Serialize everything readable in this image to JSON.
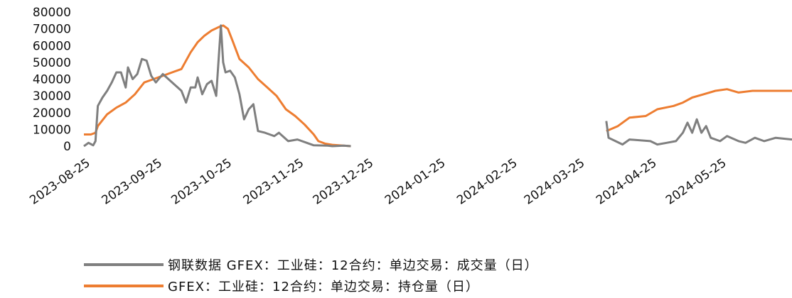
{
  "chart_data": {
    "type": "line",
    "title": "",
    "xlabel": "",
    "ylabel": "",
    "ylim": [
      0,
      80000
    ],
    "yticks": [
      "0",
      "10000",
      "20000",
      "30000",
      "40000",
      "50000",
      "60000",
      "70000",
      "80000"
    ],
    "xticks": [
      "2023-08-25",
      "2023-09-25",
      "2023-10-25",
      "2023-11-25",
      "2023-12-25",
      "2024-01-25",
      "2024-02-25",
      "2024-03-25",
      "2024-04-25",
      "2024-05-25"
    ],
    "xlim": [
      "2023-08-22",
      "2024-06-22"
    ],
    "grid": false,
    "legend_position": "bottom",
    "series": [
      {
        "name": "钢联数据 GFEX：工业硅：12合约：单边交易：成交量（日）",
        "color": "#7f7f7f",
        "points": [
          [
            "2023-08-22",
            0
          ],
          [
            "2023-08-24",
            2000
          ],
          [
            "2023-08-26",
            500
          ],
          [
            "2023-08-27",
            3000
          ],
          [
            "2023-08-28",
            24000
          ],
          [
            "2023-08-30",
            29000
          ],
          [
            "2023-09-01",
            33000
          ],
          [
            "2023-09-03",
            38000
          ],
          [
            "2023-09-05",
            44000
          ],
          [
            "2023-09-07",
            44000
          ],
          [
            "2023-09-09",
            35000
          ],
          [
            "2023-09-10",
            47000
          ],
          [
            "2023-09-12",
            40000
          ],
          [
            "2023-09-14",
            43000
          ],
          [
            "2023-09-16",
            52000
          ],
          [
            "2023-09-18",
            51000
          ],
          [
            "2023-09-20",
            42000
          ],
          [
            "2023-09-22",
            38000
          ],
          [
            "2023-09-25",
            43000
          ],
          [
            "2023-10-03",
            33000
          ],
          [
            "2023-10-05",
            26000
          ],
          [
            "2023-10-07",
            35000
          ],
          [
            "2023-10-09",
            35000
          ],
          [
            "2023-10-10",
            41000
          ],
          [
            "2023-10-12",
            31000
          ],
          [
            "2023-10-14",
            37000
          ],
          [
            "2023-10-16",
            39000
          ],
          [
            "2023-10-18",
            30000
          ],
          [
            "2023-10-20",
            72000
          ],
          [
            "2023-10-21",
            50000
          ],
          [
            "2023-10-22",
            44000
          ],
          [
            "2023-10-24",
            45000
          ],
          [
            "2023-10-26",
            41000
          ],
          [
            "2023-10-28",
            31000
          ],
          [
            "2023-10-30",
            16000
          ],
          [
            "2023-11-01",
            22000
          ],
          [
            "2023-11-03",
            25000
          ],
          [
            "2023-11-05",
            9000
          ],
          [
            "2023-11-08",
            8000
          ],
          [
            "2023-11-12",
            6000
          ],
          [
            "2023-11-14",
            8000
          ],
          [
            "2023-11-18",
            3000
          ],
          [
            "2023-11-22",
            4000
          ],
          [
            "2023-11-26",
            2000
          ],
          [
            "2023-11-29",
            500
          ],
          [
            "2023-12-05",
            300
          ],
          [
            "2023-12-07",
            0
          ],
          [
            "2023-12-12",
            300
          ],
          [
            "2023-12-15",
            0
          ]
        ]
      },
      {
        "name": "GFEX：工业硅：12合约：单边交易：持仓量（日）",
        "color": "#ed7d31",
        "points": [
          [
            "2023-08-22",
            7000
          ],
          [
            "2023-08-25",
            7000
          ],
          [
            "2023-08-27",
            8000
          ],
          [
            "2023-08-28",
            12000
          ],
          [
            "2023-09-01",
            19000
          ],
          [
            "2023-09-05",
            23000
          ],
          [
            "2023-09-09",
            26000
          ],
          [
            "2023-09-13",
            31000
          ],
          [
            "2023-09-17",
            38000
          ],
          [
            "2023-09-21",
            40000
          ],
          [
            "2023-09-25",
            42000
          ],
          [
            "2023-09-29",
            44000
          ],
          [
            "2023-10-03",
            46000
          ],
          [
            "2023-10-07",
            56000
          ],
          [
            "2023-10-10",
            62000
          ],
          [
            "2023-10-13",
            66000
          ],
          [
            "2023-10-16",
            69000
          ],
          [
            "2023-10-19",
            71000
          ],
          [
            "2023-10-21",
            72000
          ],
          [
            "2023-10-23",
            70000
          ],
          [
            "2023-10-25",
            63000
          ],
          [
            "2023-10-28",
            52000
          ],
          [
            "2023-11-01",
            47000
          ],
          [
            "2023-11-05",
            40000
          ],
          [
            "2023-11-09",
            35000
          ],
          [
            "2023-11-13",
            30000
          ],
          [
            "2023-11-17",
            22000
          ],
          [
            "2023-11-21",
            18000
          ],
          [
            "2023-11-25",
            13000
          ],
          [
            "2023-11-29",
            7000
          ],
          [
            "2023-12-01",
            3000
          ],
          [
            "2023-12-04",
            1500
          ],
          [
            "2023-12-07",
            800
          ],
          [
            "2023-12-15",
            0
          ]
        ]
      },
      {
        "name": "",
        "color": "#7f7f7f",
        "points": [
          [
            "2024-04-03",
            15000
          ],
          [
            "2024-04-04",
            5000
          ],
          [
            "2024-04-07",
            3000
          ],
          [
            "2024-04-10",
            1000
          ],
          [
            "2024-04-13",
            4000
          ],
          [
            "2024-04-22",
            3000
          ],
          [
            "2024-04-25",
            1000
          ],
          [
            "2024-04-29",
            2000
          ],
          [
            "2024-05-03",
            3000
          ],
          [
            "2024-05-06",
            8000
          ],
          [
            "2024-05-08",
            14000
          ],
          [
            "2024-05-10",
            8000
          ],
          [
            "2024-05-12",
            16000
          ],
          [
            "2024-05-14",
            8000
          ],
          [
            "2024-05-16",
            12000
          ],
          [
            "2024-05-18",
            5000
          ],
          [
            "2024-05-22",
            3000
          ],
          [
            "2024-05-25",
            6000
          ],
          [
            "2024-05-30",
            3000
          ],
          [
            "2024-06-02",
            2000
          ],
          [
            "2024-06-06",
            5000
          ],
          [
            "2024-06-10",
            3000
          ],
          [
            "2024-06-15",
            5000
          ],
          [
            "2024-06-22",
            4000
          ]
        ]
      },
      {
        "name": "",
        "color": "#ed7d31",
        "points": [
          [
            "2024-04-03",
            9000
          ],
          [
            "2024-04-08",
            12000
          ],
          [
            "2024-04-13",
            17000
          ],
          [
            "2024-04-20",
            18000
          ],
          [
            "2024-04-25",
            22000
          ],
          [
            "2024-05-02",
            24000
          ],
          [
            "2024-05-06",
            26000
          ],
          [
            "2024-05-10",
            29000
          ],
          [
            "2024-05-15",
            31000
          ],
          [
            "2024-05-20",
            33000
          ],
          [
            "2024-05-25",
            34000
          ],
          [
            "2024-05-30",
            32000
          ],
          [
            "2024-06-05",
            33000
          ],
          [
            "2024-06-15",
            33000
          ],
          [
            "2024-06-22",
            33000
          ]
        ]
      }
    ]
  }
}
